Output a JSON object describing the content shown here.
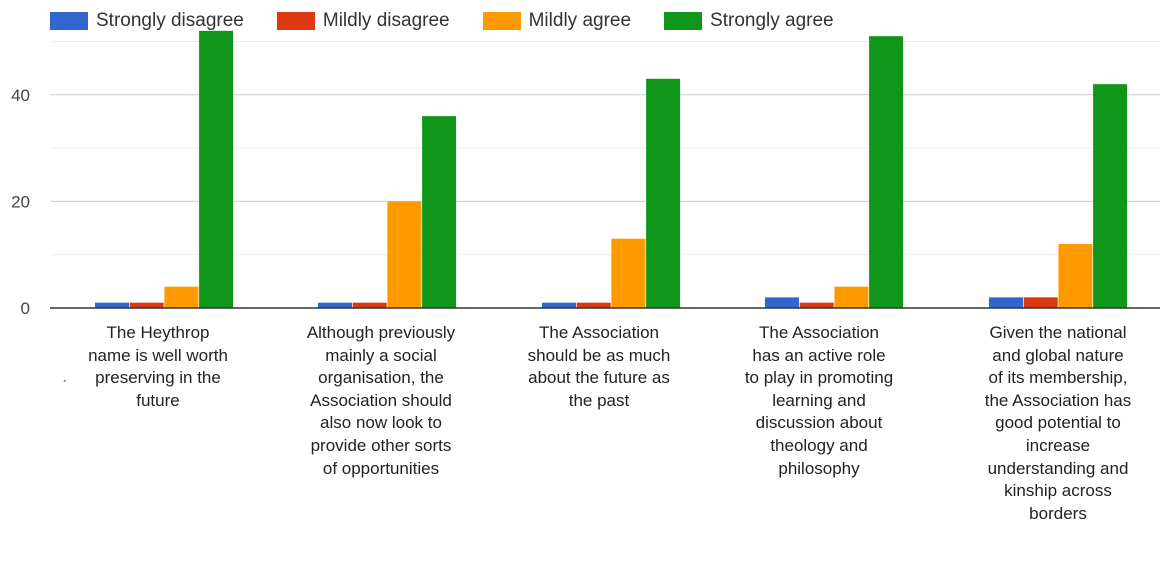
{
  "colors": {
    "Strongly disagree": "#3366cc",
    "Mildly disagree": "#dc3912",
    "Mildly agree": "#ff9900",
    "Strongly agree": "#109618"
  },
  "chart_data": {
    "type": "bar",
    "categories": [
      "The Heythrop name is well worth preserving in the future",
      "Although previously mainly a social organisation, the Association should also now look to provide other sorts of opportunities",
      "The Association should be as much about the future as the past",
      "The Association has an active role to play in promoting learning and discussion about theology and philosophy",
      "Given the national and global nature of its membership, the Association has good potential to increase understanding and kinship across borders"
    ],
    "series": [
      {
        "name": "Strongly disagree",
        "values": [
          1,
          1,
          1,
          2,
          2
        ]
      },
      {
        "name": "Mildly disagree",
        "values": [
          1,
          1,
          1,
          1,
          2
        ]
      },
      {
        "name": "Mildly agree",
        "values": [
          4,
          20,
          13,
          4,
          12
        ]
      },
      {
        "name": "Strongly agree",
        "values": [
          52,
          36,
          43,
          51,
          42
        ]
      }
    ],
    "yticks": [
      0,
      20,
      40
    ],
    "ylim": [
      0,
      52
    ],
    "grid": true,
    "legend_position": "top"
  }
}
